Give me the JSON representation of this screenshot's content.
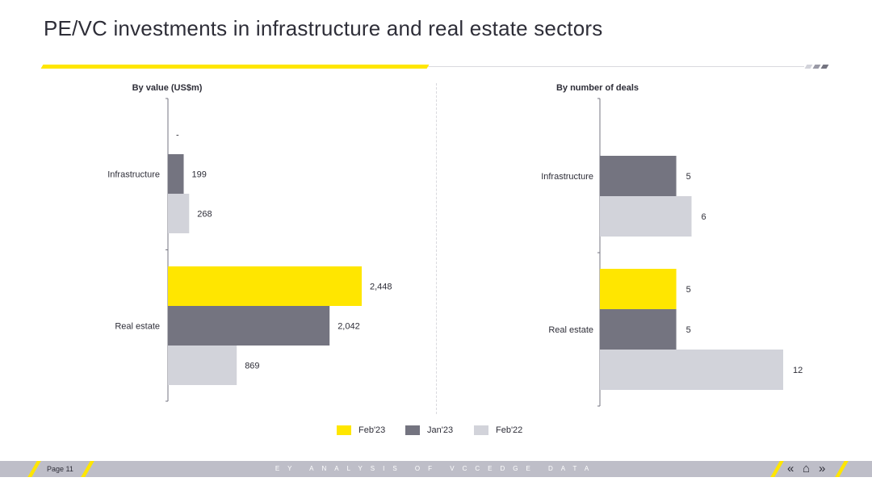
{
  "page": {
    "title": "PE/VC investments in infrastructure and real estate sectors",
    "page_number": "Page 11",
    "footer_text": "EY ANALYSIS OF VCCEDGE DATA"
  },
  "legend": [
    {
      "name": "Feb'23",
      "color": "#ffe600"
    },
    {
      "name": "Jan'23",
      "color": "#747480"
    },
    {
      "name": "Feb'22",
      "color": "#d2d3da"
    }
  ],
  "chart_data": [
    {
      "type": "bar",
      "orientation": "horizontal",
      "title": "By value (US$m)",
      "categories": [
        "Infrastructure",
        "Real estate"
      ],
      "series": [
        {
          "name": "Feb'23",
          "values": [
            0,
            2448
          ],
          "labels": [
            "-",
            "2,448"
          ]
        },
        {
          "name": "Jan'23",
          "values": [
            199,
            2042
          ],
          "labels": [
            "199",
            "2,042"
          ]
        },
        {
          "name": "Feb'22",
          "values": [
            268,
            869
          ],
          "labels": [
            "268",
            "869"
          ]
        }
      ],
      "xlim": [
        0,
        2448
      ],
      "grid": false
    },
    {
      "type": "bar",
      "orientation": "horizontal",
      "title": "By number of deals",
      "categories": [
        "Infrastructure",
        "Real estate"
      ],
      "series": [
        {
          "name": "Feb'23",
          "values": [
            0,
            5
          ],
          "labels": [
            "",
            "5"
          ]
        },
        {
          "name": "Jan'23",
          "values": [
            5,
            5
          ],
          "labels": [
            "5",
            "5"
          ]
        },
        {
          "name": "Feb'22",
          "values": [
            6,
            12
          ],
          "labels": [
            "6",
            "12"
          ]
        }
      ],
      "xlim": [
        0,
        12
      ],
      "grid": false
    }
  ]
}
